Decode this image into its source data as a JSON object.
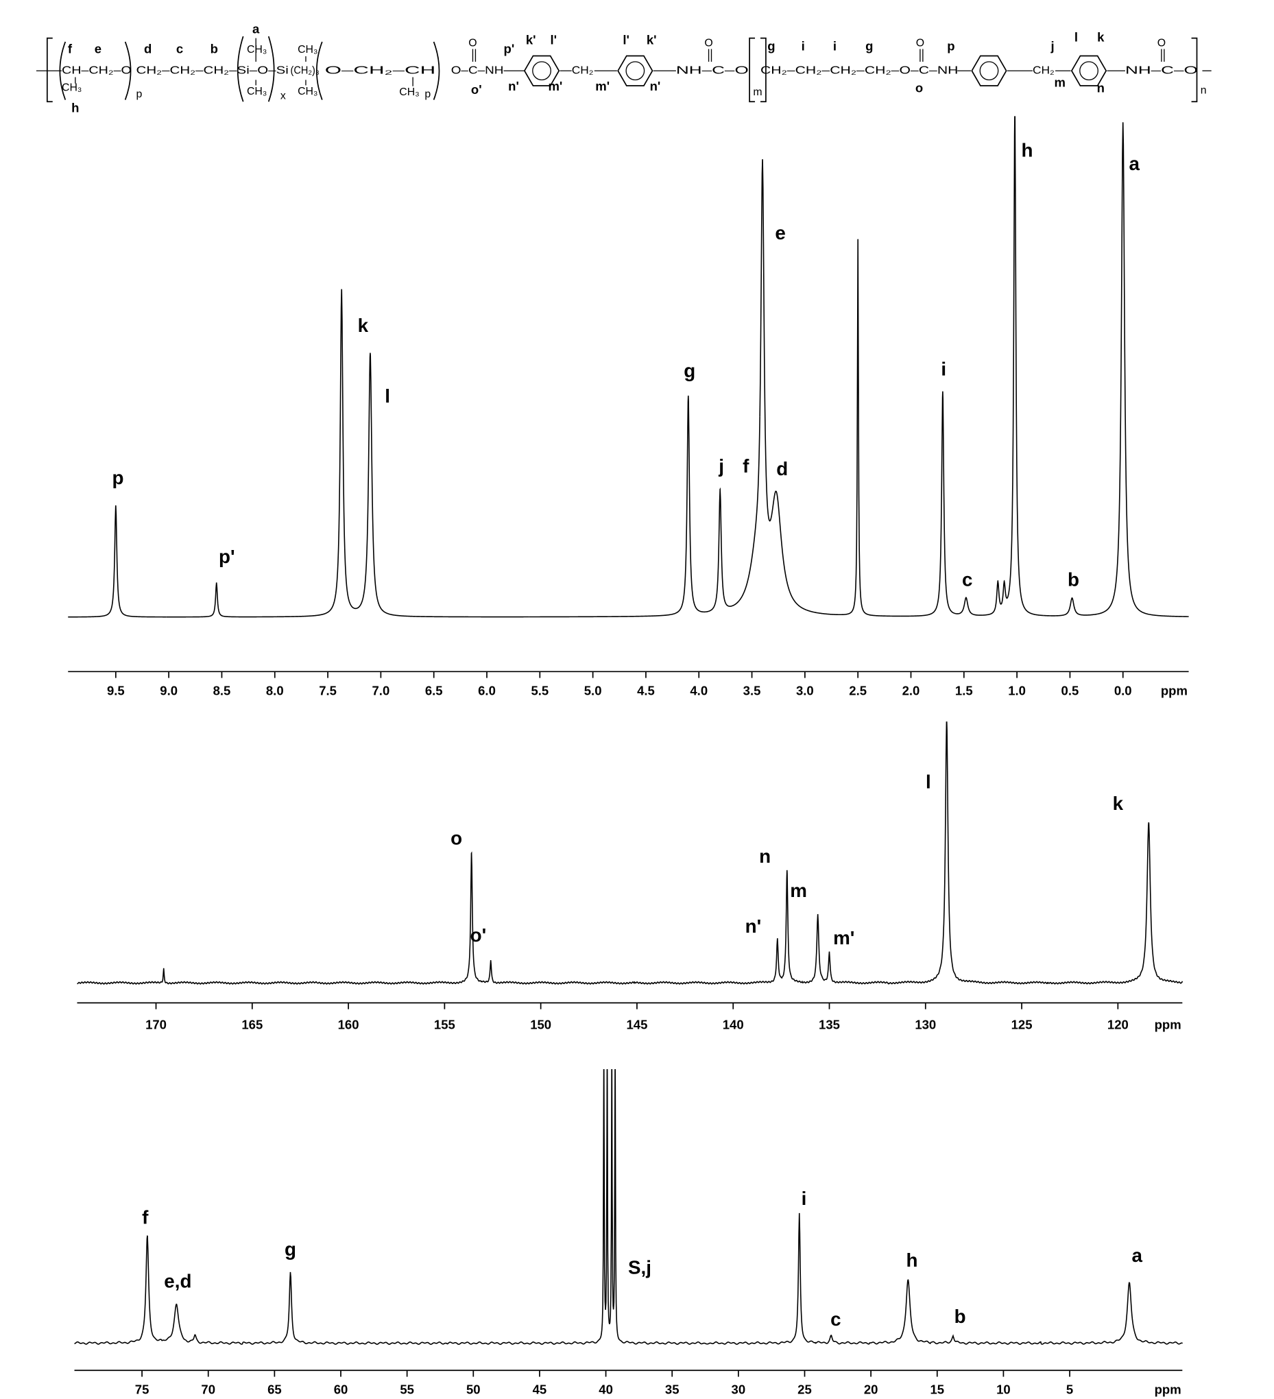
{
  "structure": {
    "items": [
      "f",
      "e",
      "d",
      "c",
      "b",
      "a",
      "p'",
      "k'",
      "l'",
      "l'",
      "k'",
      "g",
      "i",
      "i",
      "g",
      "p",
      "j",
      "l",
      "k",
      "h",
      "o'",
      "n'",
      "m'",
      "m'",
      "n'",
      "o",
      "m",
      "n",
      "CH–CH₂–O",
      "CH₂–CH₂–CH₂–Si–O–Si",
      "(CH₂)₃",
      "O–CH₂–CH",
      "O–C–NH",
      "CH₂",
      "NH–C–O",
      "CH₂–CH₂–CH₂–CH₂–O–C–NH",
      "CH₂",
      "NH–C–O",
      "CH₃",
      "CH₃",
      "CH₃",
      "CH₃",
      "CH₃",
      "CH₃",
      "O",
      "O",
      "O",
      "O",
      "p",
      "x",
      "p",
      "m",
      "n"
    ]
  },
  "chart_data": [
    {
      "type": "spectrum",
      "xlabel": "ppm",
      "xlim": [
        9.95,
        -0.62
      ],
      "xticks": [
        9.5,
        {
          "value": 9,
          "label": "9.0"
        },
        8.5,
        {
          "value": 8,
          "label": "8.0"
        },
        7.5,
        {
          "value": 7,
          "label": "7.0"
        },
        6.5,
        {
          "value": 6,
          "label": "6.0"
        },
        5.5,
        {
          "value": 5,
          "label": "5.0"
        },
        4.5,
        {
          "value": 4,
          "label": "4.0"
        },
        3.5,
        {
          "value": 3,
          "label": "3.0"
        },
        2.5,
        {
          "value": 2,
          "label": "2.0"
        },
        1.5,
        {
          "value": 1,
          "label": "1.0"
        },
        0.5,
        {
          "value": 0,
          "label": "0.0"
        }
      ],
      "peaks": [
        {
          "x": 9.5,
          "intensity": 123,
          "label": "p"
        },
        {
          "x": 8.55,
          "intensity": 38,
          "label": "p'"
        },
        {
          "x": 7.37,
          "intensity": 360,
          "label": "k"
        },
        {
          "x": 7.1,
          "intensity": 290,
          "label": "l"
        },
        {
          "x": 4.1,
          "intensity": 242,
          "label": "g"
        },
        {
          "x": 3.8,
          "intensity": 135,
          "label": "j"
        },
        {
          "x": 3.45,
          "intensity": 60,
          "label": "f"
        },
        {
          "x": 3.4,
          "intensity": 440,
          "label": "e"
        },
        {
          "x": 3.27,
          "intensity": 120,
          "label": "d"
        },
        {
          "x": 2.5,
          "intensity": 415
        },
        {
          "x": 1.7,
          "intensity": 248,
          "label": "i"
        },
        {
          "x": 1.48,
          "intensity": 20,
          "label": "c"
        },
        {
          "x": 1.18,
          "intensity": 35
        },
        {
          "x": 1.12,
          "intensity": 30
        },
        {
          "x": 1.02,
          "intensity": 560,
          "label": "h"
        },
        {
          "x": 0.48,
          "intensity": 20,
          "label": "b"
        },
        {
          "x": 0,
          "intensity": 545,
          "label": "a"
        }
      ]
    },
    {
      "type": "spectrum",
      "xlabel": "ppm",
      "xlim": [
        174.1,
        116.65
      ],
      "xticks": [
        170,
        165,
        160,
        155,
        150,
        145,
        140,
        135,
        130,
        125,
        120
      ],
      "peaks": [
        {
          "x": 169.6,
          "intensity": 15
        },
        {
          "x": 153.6,
          "intensity": 143,
          "label": "o"
        },
        {
          "x": 152.6,
          "intensity": 25,
          "label": "o'"
        },
        {
          "x": 137.7,
          "intensity": 48,
          "label": "n'"
        },
        {
          "x": 137.2,
          "intensity": 123,
          "label": "n"
        },
        {
          "x": 135.6,
          "intensity": 75,
          "label": "m"
        },
        {
          "x": 135.0,
          "intensity": 33,
          "label": "m'"
        },
        {
          "x": 128.9,
          "intensity": 290,
          "label": "l"
        },
        {
          "x": 118.4,
          "intensity": 178,
          "label": "k"
        }
      ]
    },
    {
      "type": "spectrum",
      "xlabel": "ppm",
      "xlim": [
        80.1,
        -3.5
      ],
      "xticks": [
        75,
        70,
        65,
        60,
        55,
        50,
        45,
        40,
        35,
        30,
        25,
        20,
        15,
        10,
        5
      ],
      "peaks": [
        {
          "x": 74.6,
          "intensity": 118,
          "label": "f"
        },
        {
          "x": 72.4,
          "intensity": 43,
          "label": "e,d"
        },
        {
          "x": 71.0,
          "intensity": 8
        },
        {
          "x": 63.8,
          "intensity": 78,
          "label": "g"
        },
        {
          "x": 40.15,
          "intensity": 320
        },
        {
          "x": 39.9,
          "intensity": 320
        },
        {
          "x": 39.55,
          "intensity": 320
        },
        {
          "x": 39.3,
          "intensity": 320,
          "label": "S,j"
        },
        {
          "x": 25.4,
          "intensity": 142,
          "label": "i"
        },
        {
          "x": 23.0,
          "intensity": 8,
          "label": "c"
        },
        {
          "x": 17.2,
          "intensity": 70,
          "label": "h"
        },
        {
          "x": 13.8,
          "intensity": 8,
          "label": "b"
        },
        {
          "x": 0.5,
          "intensity": 67,
          "label": "a"
        }
      ]
    }
  ]
}
